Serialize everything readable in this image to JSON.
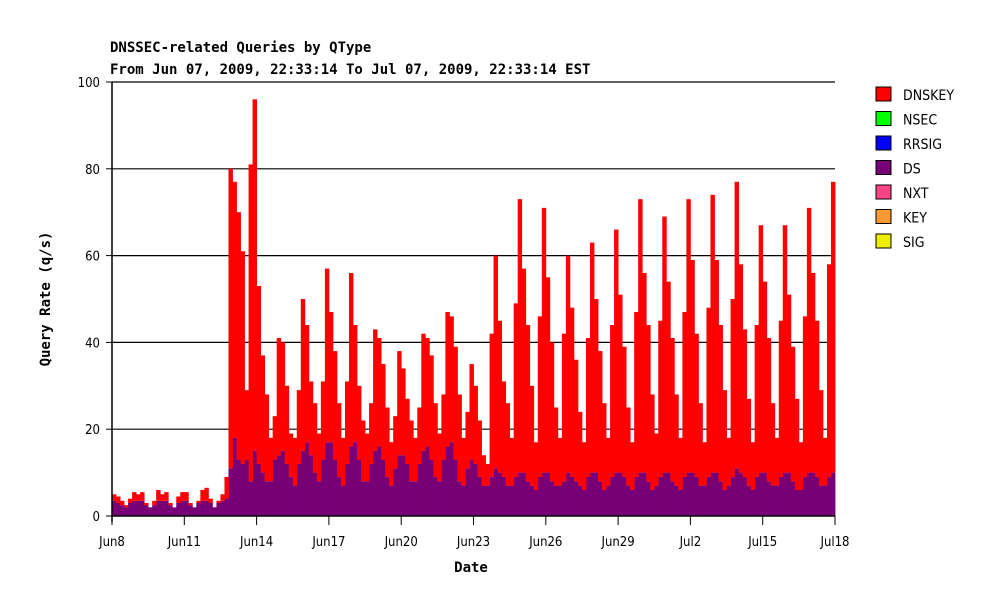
{
  "chart_data": {
    "type": "area",
    "stacked": true,
    "title": "DNSSEC-related Queries by QType",
    "subtitle": "From Jun 07, 2009, 22:33:14 To Jul 07, 2009, 22:33:14 EST",
    "xlabel": "Date",
    "ylabel": "Query Rate (q/s)",
    "ylim": [
      0,
      100
    ],
    "yticks": [
      0,
      20,
      40,
      60,
      80,
      100
    ],
    "grid": "horizontal",
    "legend_placement": "right",
    "x_range": [
      "Jun8",
      "Jul18"
    ],
    "xtick_labels": [
      "Jun8",
      "Jun11",
      "Jun14",
      "Jun17",
      "Jun20",
      "Jun23",
      "Jun26",
      "Jun29",
      "Jul2",
      "Jul15",
      "Jul18"
    ],
    "legend": [
      {
        "name": "DNSKEY",
        "color": "#ff0000"
      },
      {
        "name": "NSEC",
        "color": "#00ff00"
      },
      {
        "name": "RRSIG",
        "color": "#0000ff"
      },
      {
        "name": "DS",
        "color": "#770077"
      },
      {
        "name": "NXT",
        "color": "#ff4488"
      },
      {
        "name": "KEY",
        "color": "#ff9933"
      },
      {
        "name": "SIG",
        "color": "#eeee00"
      }
    ],
    "sampling": "uniform bins from Jun8 to Jul18",
    "series": [
      {
        "name": "DS",
        "color": "#770077",
        "values": [
          3.5,
          3,
          2.5,
          2,
          3,
          3.5,
          3.5,
          3.5,
          2.5,
          2,
          2.5,
          3.5,
          3.5,
          3.5,
          2.5,
          2,
          3,
          3.5,
          3.5,
          2.5,
          2,
          3,
          3.5,
          3.5,
          3,
          2,
          3,
          3.5,
          4,
          11,
          18,
          13,
          12,
          13,
          8,
          15,
          12,
          10,
          8,
          8,
          13,
          14,
          15,
          12,
          9,
          7,
          12,
          15,
          17,
          14,
          10,
          8,
          13,
          17,
          17,
          13,
          9,
          7,
          12,
          16,
          17,
          13,
          8,
          8,
          12,
          15,
          16,
          13,
          9,
          7,
          11,
          14,
          14,
          12,
          8,
          8,
          12,
          15,
          16,
          13,
          9,
          8,
          13,
          16,
          17,
          13,
          8,
          7,
          11,
          13,
          12,
          9,
          7,
          7,
          9,
          11,
          10,
          9,
          7,
          7,
          9,
          10,
          10,
          8,
          7,
          6,
          9,
          10,
          10,
          8,
          7,
          7,
          8,
          10,
          9,
          8,
          7,
          6,
          9,
          10,
          10,
          8,
          6,
          7,
          9,
          10,
          10,
          9,
          7,
          6,
          9,
          10,
          10,
          8,
          6,
          7,
          9,
          10,
          10,
          8,
          7,
          6,
          9,
          10,
          10,
          9,
          7,
          7,
          9,
          10,
          10,
          8,
          6,
          7,
          9,
          11,
          10,
          9,
          7,
          6,
          9,
          10,
          10,
          8,
          7,
          7,
          9,
          10,
          10,
          8,
          6,
          6,
          9,
          10,
          10,
          9,
          7,
          7,
          9,
          10
        ]
      },
      {
        "name": "DNSKEY",
        "color": "#ff0000",
        "values": [
          1.5,
          1.5,
          1,
          0.5,
          1,
          2,
          1.5,
          2,
          0.5,
          0,
          1,
          2.5,
          1.5,
          2,
          0.5,
          0,
          1.5,
          2,
          2,
          0.5,
          0,
          0.5,
          2.5,
          3,
          1,
          0,
          0.5,
          1.5,
          5,
          69,
          59,
          57,
          49,
          16,
          73,
          81,
          41,
          27,
          20,
          10,
          10,
          27,
          25,
          18,
          10,
          11,
          17,
          35,
          27,
          17,
          16,
          11,
          18,
          40,
          30,
          25,
          17,
          11,
          19,
          40,
          27,
          17,
          14,
          11,
          14,
          28,
          25,
          22,
          16,
          10,
          12,
          24,
          20,
          15,
          14,
          10,
          13,
          27,
          25,
          24,
          17,
          11,
          15,
          31,
          29,
          26,
          20,
          11,
          13,
          22,
          18,
          13,
          7,
          5,
          33,
          49,
          35,
          22,
          19,
          11,
          40,
          63,
          47,
          36,
          23,
          11,
          37,
          61,
          45,
          32,
          18,
          11,
          34,
          50,
          39,
          28,
          17,
          11,
          32,
          53,
          40,
          30,
          20,
          11,
          35,
          56,
          41,
          30,
          18,
          11,
          38,
          63,
          46,
          36,
          22,
          12,
          36,
          59,
          44,
          33,
          21,
          12,
          38,
          63,
          49,
          33,
          19,
          10,
          39,
          64,
          49,
          36,
          23,
          11,
          41,
          66,
          48,
          34,
          20,
          11,
          35,
          57,
          44,
          33,
          19,
          11,
          36,
          57,
          41,
          31,
          21,
          11,
          37,
          61,
          46,
          36,
          22,
          11,
          49,
          67
        ]
      }
    ]
  }
}
